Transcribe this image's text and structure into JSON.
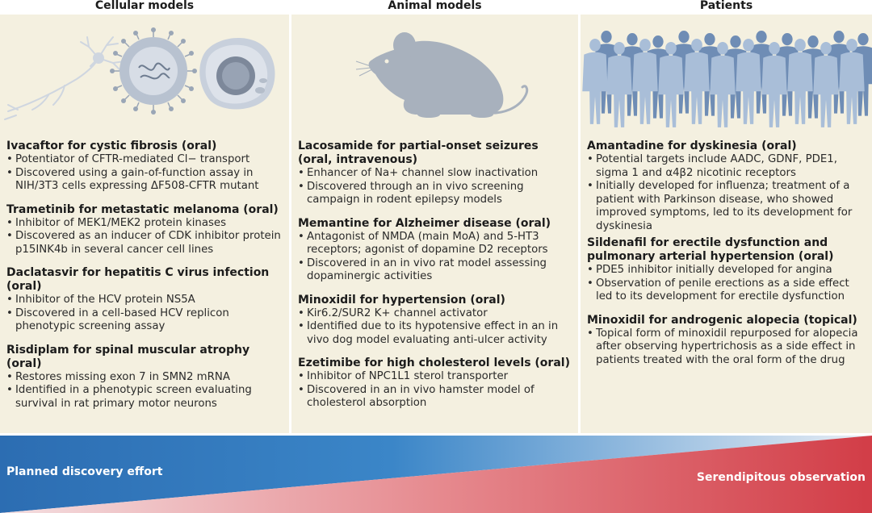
{
  "headers": {
    "cellular": "Cellular models",
    "animal": "Animal models",
    "patients": "Patients"
  },
  "cellular": [
    {
      "title": "Ivacaftor for cystic fibrosis (oral)",
      "bullets": [
        "Potentiator of CFTR-mediated Cl− transport",
        "Discovered using a gain-of-function assay in NIH/3T3 cells expressing ΔF508-CFTR mutant"
      ]
    },
    {
      "title": "Trametinib for metastatic melanoma (oral)",
      "bullets": [
        "Inhibitor of MEK1/MEK2 protein kinases",
        "Discovered as an inducer of CDK inhibitor protein p15INK4b in several cancer cell lines"
      ]
    },
    {
      "title": "Daclatasvir for hepatitis C virus infection (oral)",
      "bullets": [
        "Inhibitor of the HCV protein NS5A",
        "Discovered in a cell-based HCV replicon phenotypic screening assay"
      ]
    },
    {
      "title": "Risdiplam for spinal muscular atrophy (oral)",
      "bullets": [
        "Restores missing exon 7 in SMN2 mRNA",
        "Identified in a phenotypic screen evaluating survival in rat primary motor neurons"
      ]
    }
  ],
  "animal": [
    {
      "title": "Lacosamide for partial-onset seizures (oral, intravenous)",
      "bullets": [
        "Enhancer of Na+ channel slow inactivation",
        "Discovered through an in vivo screening campaign in rodent epilepsy models"
      ]
    },
    {
      "title": "Memantine for Alzheimer disease (oral)",
      "bullets": [
        "Antagonist of NMDA (main MoA) and 5-HT3 receptors; agonist of dopamine D2 receptors",
        "Discovered in an in vivo rat model assessing dopaminergic activities"
      ]
    },
    {
      "title": "Minoxidil for hypertension (oral)",
      "bullets": [
        "Kir6.2/SUR2 K+ channel activator",
        "Identified due to its hypotensive effect in an in vivo dog model evaluating anti-ulcer activity"
      ]
    },
    {
      "title": "Ezetimibe for high cholesterol levels (oral)",
      "bullets": [
        "Inhibitor of NPC1L1 sterol transporter",
        "Discovered in an in vivo hamster model of cholesterol absorption"
      ]
    }
  ],
  "patients": [
    {
      "title": "Amantadine for dyskinesia (oral)",
      "bullets": [
        "Potential targets include AADC, GDNF, PDE1, sigma 1 and α4β2 nicotinic receptors",
        "Initially developed for influenza; treatment of a patient with Parkinson disease, who showed improved symptoms, led to its development for dyskinesia"
      ]
    },
    {
      "title": "Sildenafil for erectile dysfunction and pulmonary arterial hypertension (oral)",
      "bullets": [
        "PDE5 inhibitor initially developed for angina",
        "Observation of penile erections as a side effect led to its development for erectile dysfunction"
      ]
    },
    {
      "title": "Minoxidil for androgenic alopecia (topical)",
      "bullets": [
        "Topical form of minoxidil repurposed for alopecia after observing hypertrichosis as a side effect in patients treated with the oral form of the drug"
      ]
    }
  ],
  "band": {
    "left_label": "Planned discovery effort",
    "right_label": "Serendipitous observation"
  },
  "colors": {
    "panel_bg": "#f4f0e0",
    "blue": "#2f6fb3",
    "red": "#d6404a",
    "figure": "#8fa8c8",
    "mouse": "#a8b1bd"
  },
  "icons": [
    "neuron-icon",
    "virus-infected-cell-icon",
    "cell-icon",
    "mouse-icon",
    "patient-crowd-icon"
  ]
}
